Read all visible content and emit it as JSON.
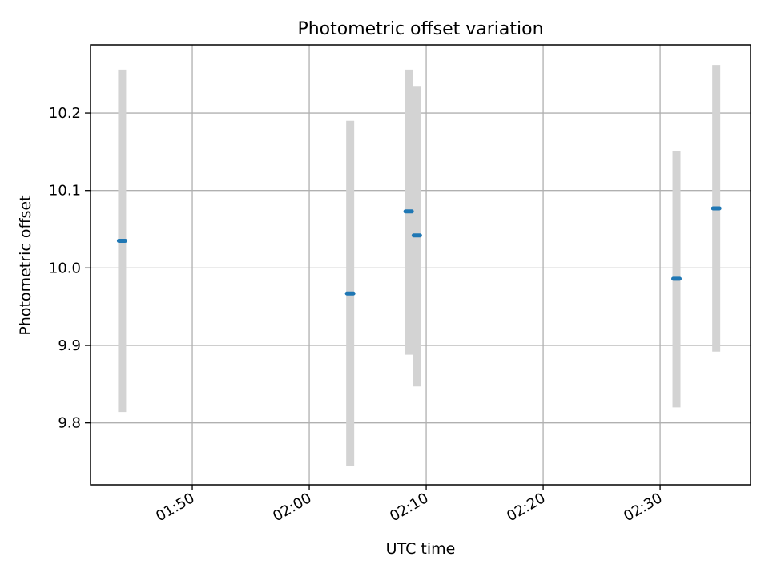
{
  "chart_data": {
    "type": "scatter",
    "title": "Photometric offset variation",
    "xlabel": "UTC time",
    "ylabel": "Photometric offset",
    "x_axis_type": "time",
    "xlim": [
      "01:41:18",
      "02:37:44"
    ],
    "ylim": [
      9.72,
      10.288
    ],
    "grid": true,
    "x_ticks": [
      "01:50",
      "02:00",
      "02:10",
      "02:20",
      "02:30"
    ],
    "y_ticks": [
      9.8,
      9.9,
      10.0,
      10.1,
      10.2
    ],
    "y_tick_labels": [
      "9.8",
      "9.9",
      "10.0",
      "10.1",
      "10.2"
    ],
    "points": [
      {
        "x": "01:44:00",
        "y": 10.035,
        "yerr_low": 9.814,
        "yerr_high": 10.256
      },
      {
        "x": "02:03:30",
        "y": 9.967,
        "yerr_low": 9.744,
        "yerr_high": 10.19
      },
      {
        "x": "02:08:30",
        "y": 10.073,
        "yerr_low": 9.888,
        "yerr_high": 10.256
      },
      {
        "x": "02:09:12",
        "y": 10.042,
        "yerr_low": 9.847,
        "yerr_high": 10.235
      },
      {
        "x": "02:31:24",
        "y": 9.986,
        "yerr_low": 9.82,
        "yerr_high": 10.151
      },
      {
        "x": "02:34:48",
        "y": 10.077,
        "yerr_low": 9.892,
        "yerr_high": 10.262
      }
    ],
    "colors": {
      "marker": "#1f77b4",
      "errorbar": "#d3d3d3",
      "grid": "#b0b0b0",
      "frame": "#000000"
    }
  }
}
